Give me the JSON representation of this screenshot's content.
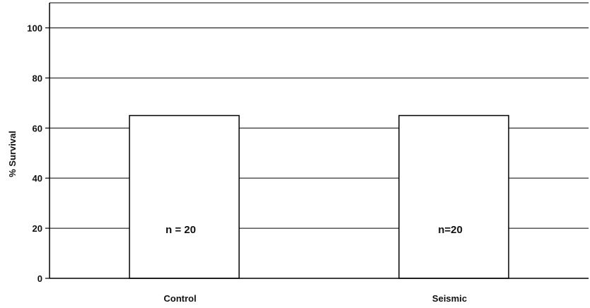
{
  "chart_data": {
    "type": "bar",
    "categories": [
      "Control",
      "Seismic"
    ],
    "values": [
      65,
      65
    ],
    "bar_labels": [
      "n = 20",
      "n=20"
    ],
    "ylabel": "% Survival",
    "xlabel": "",
    "ylim": [
      0,
      110
    ],
    "y_ticks": [
      "0",
      "20",
      "40",
      "60",
      "80",
      "100"
    ],
    "grid": true,
    "bar_fill": "#ffffff",
    "bar_stroke": "#000000"
  }
}
